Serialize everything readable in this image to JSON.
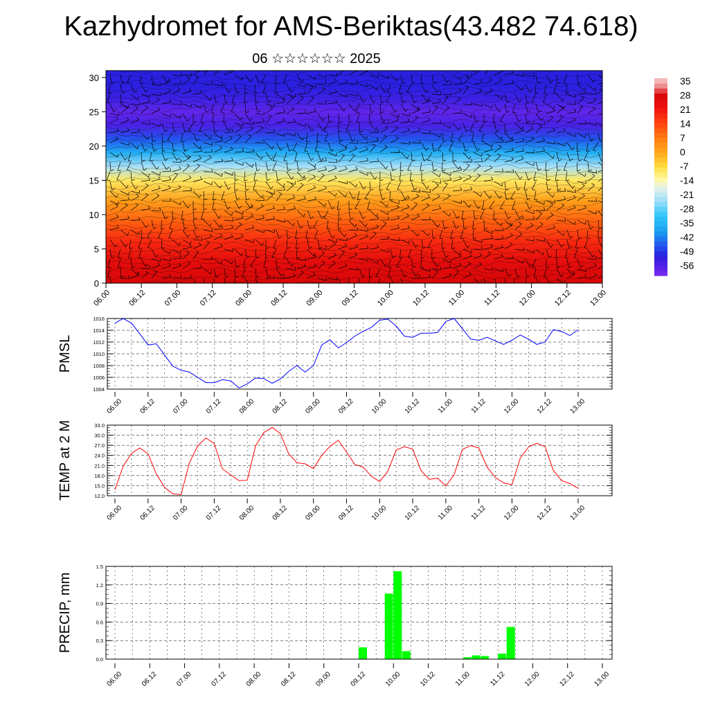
{
  "title": "Kazhydromet for AMS-Beriktas(43.482 74.618)",
  "subtitle": "06 ☆☆☆☆☆☆ 2025",
  "chart_data": [
    {
      "type": "heatmap",
      "name": "cross-section",
      "x_tick_labels": [
        "06.00",
        "06.12",
        "07.00",
        "07.12",
        "08.00",
        "08.12",
        "09.00",
        "09.12",
        "10.00",
        "10.12",
        "11.00",
        "11.12",
        "12.00",
        "12.12",
        "13.00"
      ],
      "y_tick_labels": [
        "0",
        "5",
        "10",
        "15",
        "20",
        "25",
        "30"
      ],
      "ylim": [
        0,
        31
      ],
      "colorbar": {
        "labels": [
          "35",
          "28",
          "21",
          "14",
          "7",
          "0",
          "-7",
          "-14",
          "-21",
          "-28",
          "-35",
          "-42",
          "-49",
          "-56"
        ],
        "range": [
          -60,
          38
        ]
      },
      "profile": [
        {
          "level": 0,
          "value": 30
        },
        {
          "level": 3,
          "value": 27
        },
        {
          "level": 6,
          "value": 20
        },
        {
          "level": 9,
          "value": 12
        },
        {
          "level": 12,
          "value": 3
        },
        {
          "level": 15,
          "value": -8
        },
        {
          "level": 17,
          "value": -22
        },
        {
          "level": 19,
          "value": -35
        },
        {
          "level": 21,
          "value": -45
        },
        {
          "level": 23,
          "value": -54
        },
        {
          "level": 25,
          "value": -57
        },
        {
          "level": 27,
          "value": -52
        },
        {
          "level": 29,
          "value": -50
        },
        {
          "level": 31,
          "value": -50
        }
      ]
    },
    {
      "type": "line",
      "name": "pmsl",
      "ylabel": "PMSL",
      "ylim": [
        1004,
        1016
      ],
      "y_tick_labels": [
        "1004",
        "1006",
        "1008",
        "1010",
        "1012",
        "1014",
        "1016"
      ],
      "x_tick_labels": [
        "06.00",
        "06.12",
        "07.00",
        "07.12",
        "08.00",
        "08.12",
        "09.00",
        "09.12",
        "10.00",
        "10.12",
        "11.00",
        "11.12",
        "12.00",
        "12.12",
        "13.00"
      ],
      "color": "#0000ff",
      "values": [
        1015.2,
        1016.0,
        1015.2,
        1013.4,
        1011.5,
        1011.7,
        1009.8,
        1007.9,
        1007.2,
        1006.9,
        1006.0,
        1005.1,
        1005.1,
        1005.6,
        1005.4,
        1004.2,
        1004.9,
        1005.9,
        1005.8,
        1005.0,
        1005.7,
        1007.0,
        1008.0,
        1006.9,
        1008.0,
        1011.5,
        1012.4,
        1011.0,
        1011.9,
        1013.0,
        1013.8,
        1014.5,
        1015.7,
        1015.9,
        1014.7,
        1013.0,
        1012.8,
        1013.5,
        1013.5,
        1013.6,
        1015.5,
        1016.0,
        1014.3,
        1012.5,
        1012.3,
        1012.8,
        1012.2,
        1011.6,
        1012.3,
        1013.2,
        1012.5,
        1011.6,
        1012.0,
        1014.1,
        1013.8,
        1013.1,
        1014.1
      ]
    },
    {
      "type": "line",
      "name": "temperature",
      "ylabel": "TEMP at 2 M",
      "ylim": [
        12,
        33
      ],
      "y_tick_labels": [
        "12.0",
        "15.0",
        "18.0",
        "21.0",
        "24.0",
        "27.0",
        "30.0",
        "33.0"
      ],
      "x_tick_labels": [
        "06.00",
        "06.12",
        "07.00",
        "07.12",
        "08.00",
        "08.12",
        "09.00",
        "09.12",
        "10.00",
        "10.12",
        "11.00",
        "11.12",
        "12.00",
        "12.12",
        "13.00"
      ],
      "color": "#ff0000",
      "values": [
        13.8,
        20.8,
        24.6,
        26.2,
        24.5,
        18.5,
        14.5,
        12.6,
        12.3,
        21.8,
        26.8,
        29.2,
        27.5,
        20.0,
        18.2,
        16.5,
        16.6,
        26.8,
        30.8,
        32.3,
        30.5,
        24.5,
        21.8,
        21.5,
        20.1,
        24.0,
        26.7,
        28.5,
        25.0,
        21.3,
        20.5,
        17.8,
        16.2,
        19.3,
        25.6,
        26.6,
        25.9,
        19.5,
        16.9,
        17.2,
        14.9,
        18.2,
        25.8,
        26.9,
        26.2,
        20.5,
        17.4,
        15.8,
        15.3,
        23.2,
        26.5,
        27.6,
        26.6,
        19.5,
        16.5,
        15.6,
        14.2
      ]
    },
    {
      "type": "bar",
      "name": "precipitation",
      "ylabel": "PRECIP, mm",
      "ylim": [
        0,
        1.5
      ],
      "y_tick_labels": [
        "0.0",
        "0.3",
        "0.6",
        "0.9",
        "1.2",
        "1.5"
      ],
      "x_tick_labels": [
        "06.00",
        "06.12",
        "07.00",
        "07.12",
        "08.00",
        "08.12",
        "09.00",
        "09.12",
        "10.00",
        "10.12",
        "11.00",
        "11.12",
        "12.00",
        "12.12",
        "13.00"
      ],
      "color": "#00ff00",
      "values": [
        0,
        0,
        0,
        0,
        0,
        0,
        0,
        0,
        0,
        0,
        0,
        0,
        0,
        0,
        0,
        0,
        0,
        0,
        0,
        0,
        0,
        0,
        0,
        0,
        0,
        0,
        0,
        0,
        0.19,
        0,
        0,
        1.06,
        1.42,
        0.13,
        0,
        0,
        0,
        0,
        0,
        0,
        0.03,
        0.06,
        0.05,
        0,
        0.09,
        0.52,
        0,
        0,
        0,
        0,
        0,
        0,
        0,
        0,
        0,
        0
      ]
    }
  ]
}
